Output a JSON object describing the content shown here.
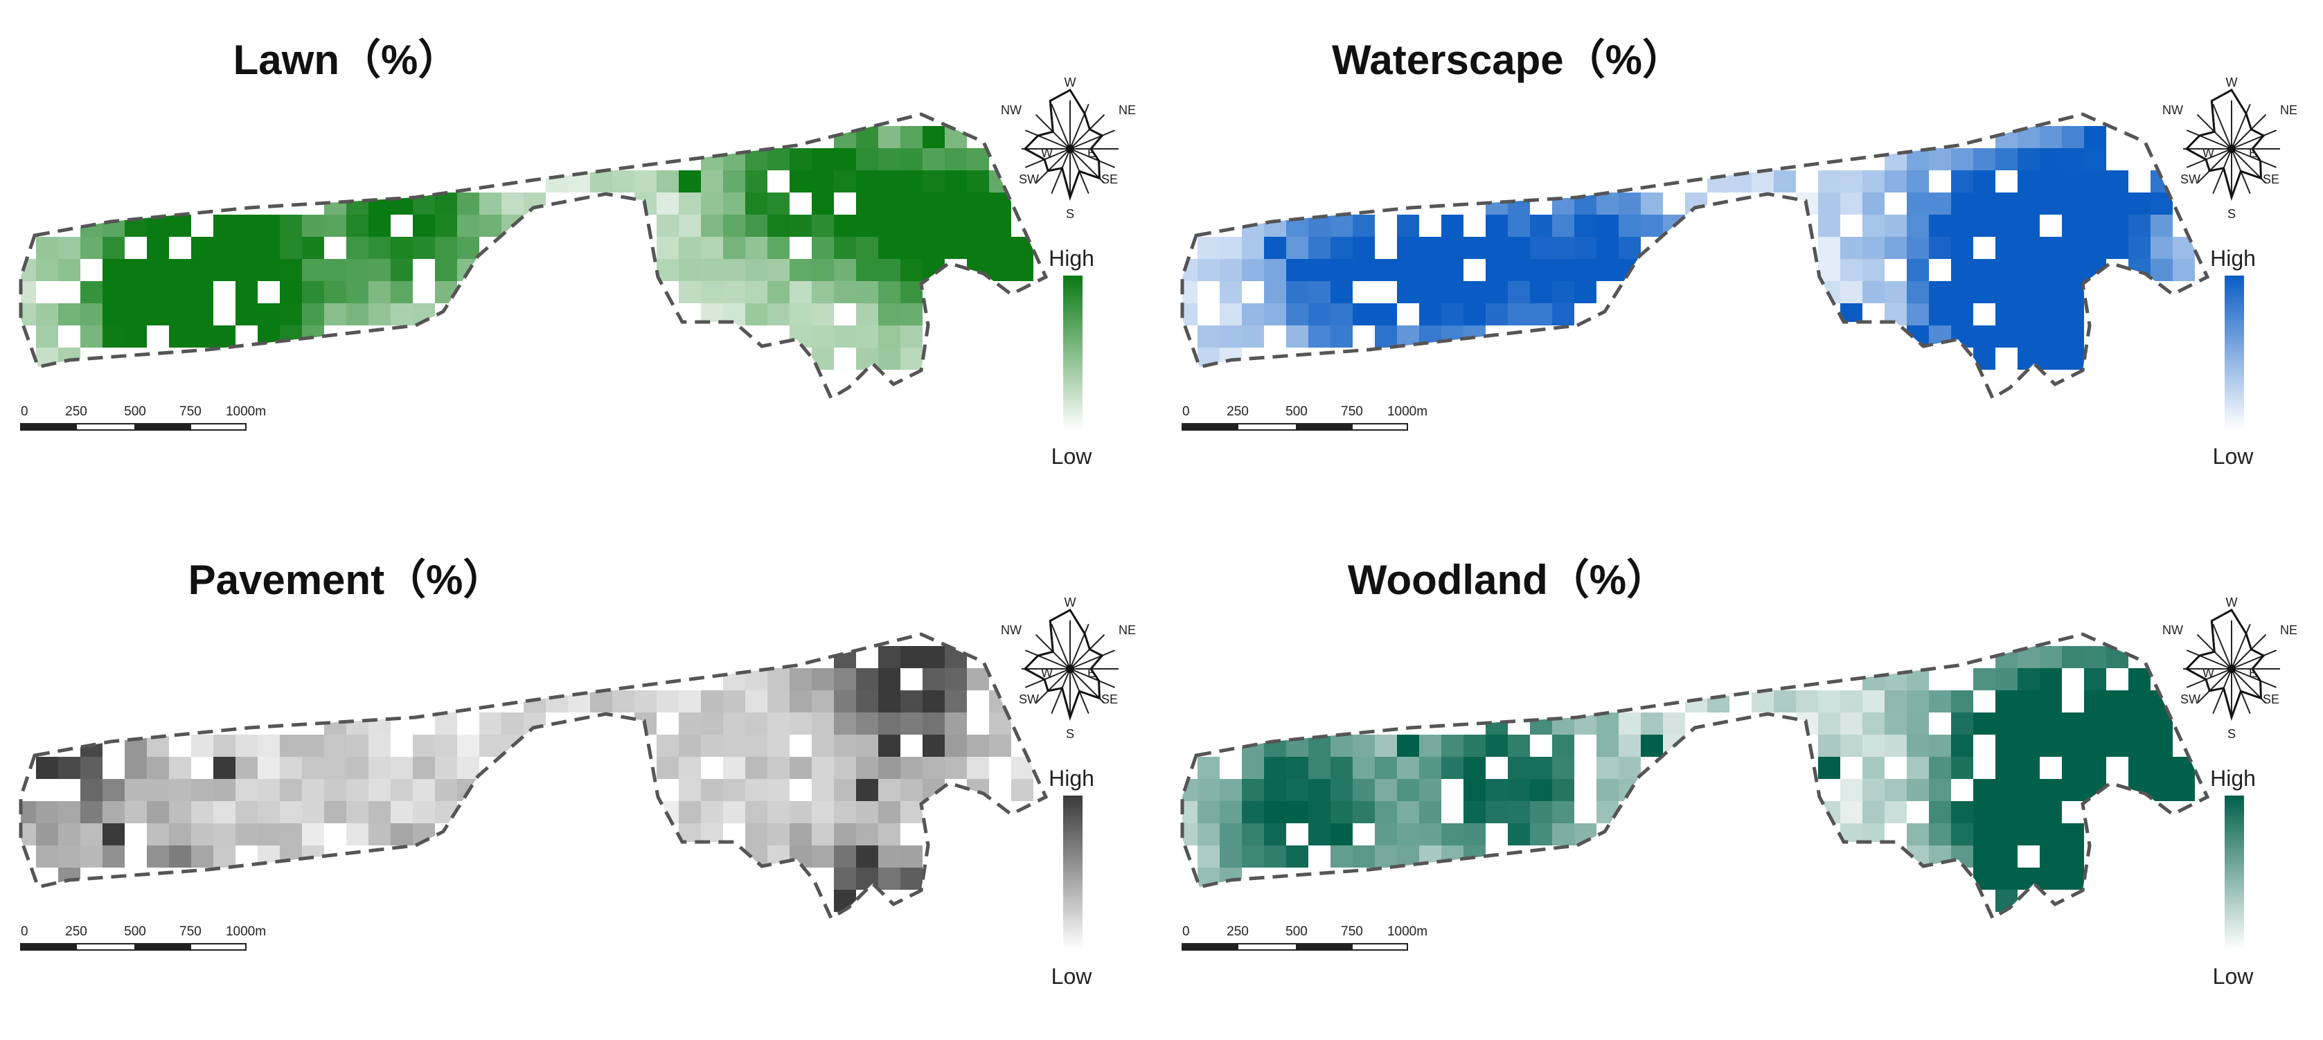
{
  "colors": {
    "lawn": "#0a7a12",
    "waterscape": "#0a5cc4",
    "pavement": "#3a3a3a",
    "woodland": "#00604a",
    "boundary": "#555555"
  },
  "legend": {
    "high": "High",
    "low": "Low"
  },
  "scalebar": {
    "ticks": [
      "0",
      "250",
      "500",
      "750",
      "1000m"
    ]
  },
  "compass": {
    "labels": [
      "W",
      "NE",
      "NW",
      "E",
      "W",
      "SE",
      "SW",
      "S"
    ]
  },
  "panels": [
    {
      "id": "lawn",
      "title": "Lawn（%）",
      "color_key": "lawn"
    },
    {
      "id": "waterscape",
      "title": "Waterscape（%）",
      "color_key": "waterscape"
    },
    {
      "id": "pavement",
      "title": "Pavement（%）",
      "color_key": "pavement"
    },
    {
      "id": "woodland",
      "title": "Woodland（%）",
      "color_key": "woodland"
    }
  ]
}
